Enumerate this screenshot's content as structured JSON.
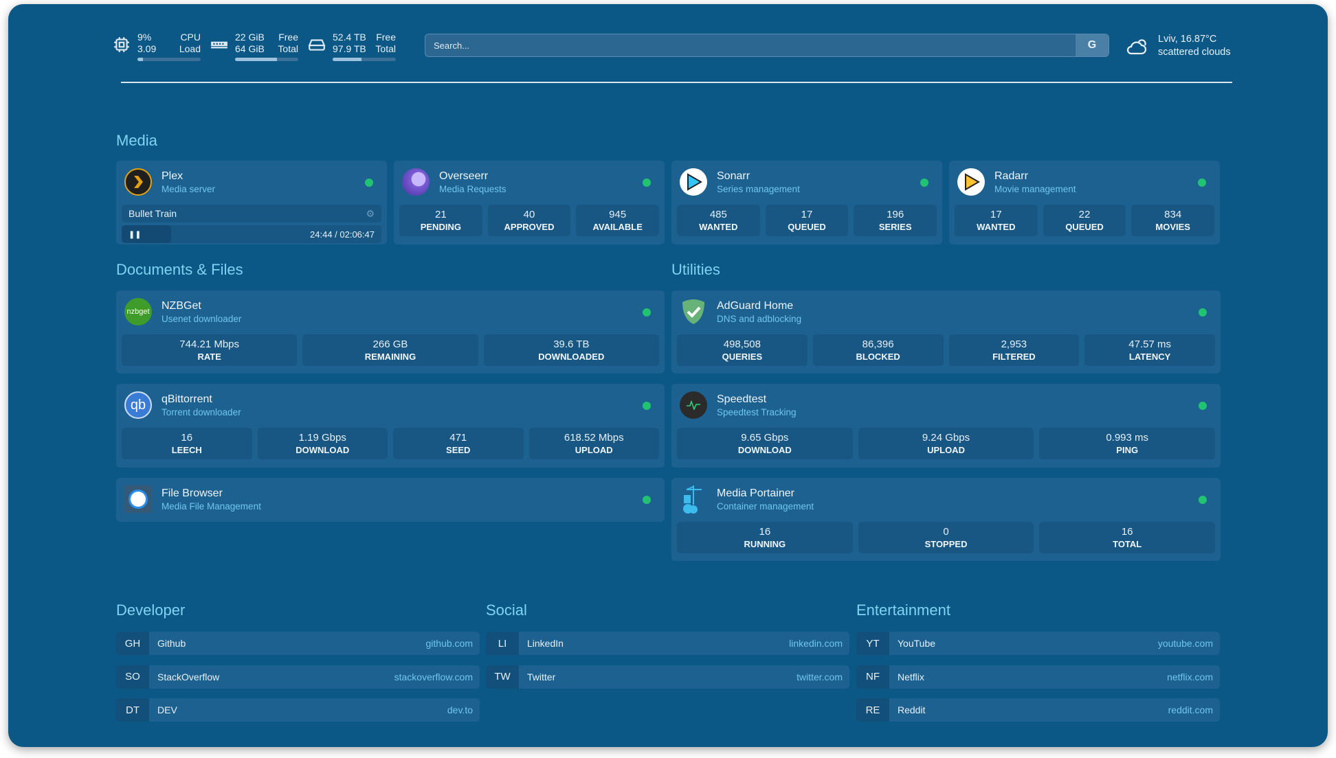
{
  "header": {
    "cpu": {
      "icon": "cpu-icon",
      "value1": "9%",
      "label1": "CPU",
      "value2": "3.09",
      "label2": "Load",
      "percent": 9
    },
    "memory": {
      "icon": "memory-icon",
      "value1": "22 GiB",
      "label1": "Free",
      "value2": "64 GiB",
      "label2": "Total",
      "percent": 66
    },
    "disk": {
      "icon": "hard-drive-icon",
      "value1": "52.4 TB",
      "label1": "Free",
      "value2": "97.9 TB",
      "label2": "Total",
      "percent": 46
    },
    "search": {
      "placeholder": "Search...",
      "provider": "G"
    },
    "weather": {
      "icon": "cloud-sun-icon",
      "location_temp": "Lviv, 16.87°C",
      "condition": "scattered clouds"
    }
  },
  "sections": {
    "media": "Media",
    "documents": "Documents & Files",
    "utilities": "Utilities",
    "developer": "Developer",
    "social": "Social",
    "entertainment": "Entertainment"
  },
  "status_color": "#22c273",
  "media": [
    {
      "name": "Plex",
      "desc": "Media server",
      "icon": "plex-icon",
      "now_playing": {
        "title": "Bullet Train",
        "time": "24:44 / 02:06:47",
        "progress": 0.19
      }
    },
    {
      "name": "Overseerr",
      "desc": "Media Requests",
      "icon": "overseerr-icon",
      "stats": [
        {
          "v": "21",
          "l": "PENDING"
        },
        {
          "v": "40",
          "l": "APPROVED"
        },
        {
          "v": "945",
          "l": "AVAILABLE"
        }
      ]
    },
    {
      "name": "Sonarr",
      "desc": "Series management",
      "icon": "sonarr-icon",
      "stats": [
        {
          "v": "485",
          "l": "WANTED"
        },
        {
          "v": "17",
          "l": "QUEUED"
        },
        {
          "v": "196",
          "l": "SERIES"
        }
      ]
    },
    {
      "name": "Radarr",
      "desc": "Movie management",
      "icon": "radarr-icon",
      "stats": [
        {
          "v": "17",
          "l": "WANTED"
        },
        {
          "v": "22",
          "l": "QUEUED"
        },
        {
          "v": "834",
          "l": "MOVIES"
        }
      ]
    }
  ],
  "documents": [
    {
      "name": "NZBGet",
      "desc": "Usenet downloader",
      "icon": "nzbget-icon",
      "stats": [
        {
          "v": "744.21 Mbps",
          "l": "RATE"
        },
        {
          "v": "266 GB",
          "l": "REMAINING"
        },
        {
          "v": "39.6 TB",
          "l": "DOWNLOADED"
        }
      ]
    },
    {
      "name": "qBittorrent",
      "desc": "Torrent downloader",
      "icon": "qbittorrent-icon",
      "stats": [
        {
          "v": "16",
          "l": "LEECH"
        },
        {
          "v": "1.19 Gbps",
          "l": "DOWNLOAD"
        },
        {
          "v": "471",
          "l": "SEED"
        },
        {
          "v": "618.52 Mbps",
          "l": "UPLOAD"
        }
      ]
    },
    {
      "name": "File Browser",
      "desc": "Media File Management",
      "icon": "file-browser-icon"
    }
  ],
  "utilities": [
    {
      "name": "AdGuard Home",
      "desc": "DNS and adblocking",
      "icon": "adguard-icon",
      "stats": [
        {
          "v": "498,508",
          "l": "QUERIES"
        },
        {
          "v": "86,396",
          "l": "BLOCKED"
        },
        {
          "v": "2,953",
          "l": "FILTERED"
        },
        {
          "v": "47.57 ms",
          "l": "LATENCY"
        }
      ]
    },
    {
      "name": "Speedtest",
      "desc": "Speedtest Tracking",
      "icon": "speedtest-icon",
      "stats": [
        {
          "v": "9.65 Gbps",
          "l": "DOWNLOAD"
        },
        {
          "v": "9.24 Gbps",
          "l": "UPLOAD"
        },
        {
          "v": "0.993 ms",
          "l": "PING"
        }
      ]
    },
    {
      "name": "Media Portainer",
      "desc": "Container management",
      "icon": "portainer-icon",
      "stats": [
        {
          "v": "16",
          "l": "RUNNING"
        },
        {
          "v": "0",
          "l": "STOPPED"
        },
        {
          "v": "16",
          "l": "TOTAL"
        }
      ]
    }
  ],
  "developer": [
    {
      "abbr": "GH",
      "name": "Github",
      "url": "github.com"
    },
    {
      "abbr": "SO",
      "name": "StackOverflow",
      "url": "stackoverflow.com"
    },
    {
      "abbr": "DT",
      "name": "DEV",
      "url": "dev.to"
    }
  ],
  "social": [
    {
      "abbr": "LI",
      "name": "LinkedIn",
      "url": "linkedin.com"
    },
    {
      "abbr": "TW",
      "name": "Twitter",
      "url": "twitter.com"
    }
  ],
  "entertainment": [
    {
      "abbr": "YT",
      "name": "YouTube",
      "url": "youtube.com"
    },
    {
      "abbr": "NF",
      "name": "Netflix",
      "url": "netflix.com"
    },
    {
      "abbr": "RE",
      "name": "Reddit",
      "url": "reddit.com"
    }
  ]
}
